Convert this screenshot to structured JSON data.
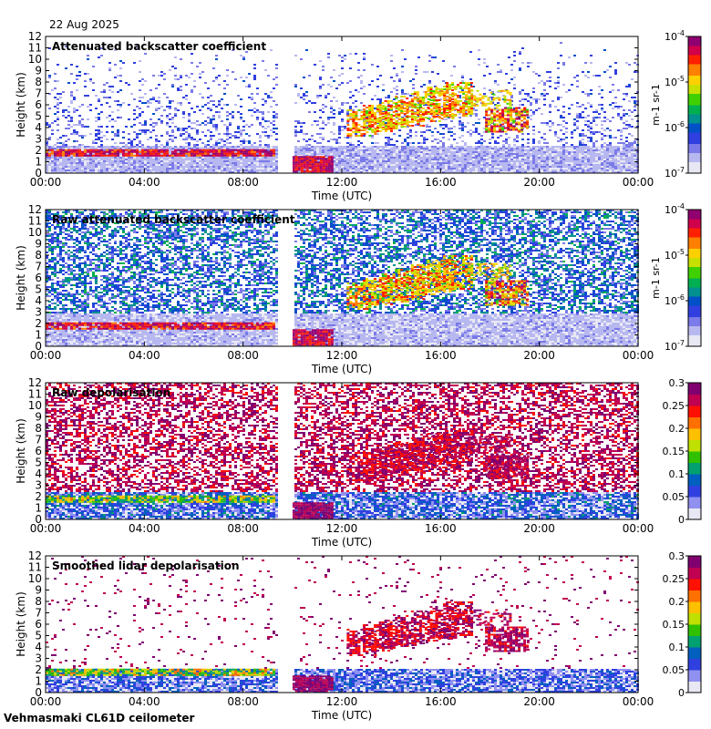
{
  "header": {
    "date": "22 Aug 2025"
  },
  "footer": {
    "instrument": "Vehmasmaki CL61D ceilometer"
  },
  "chart_data": [
    {
      "type": "heatmap",
      "title": "Attenuated backscatter coefficient",
      "xlabel": "Time (UTC)",
      "ylabel": "Height (km)",
      "xticks": [
        "00:00",
        "04:00",
        "08:00",
        "12:00",
        "16:00",
        "20:00",
        "00:00"
      ],
      "yticks": [
        0,
        1,
        2,
        3,
        4,
        5,
        6,
        7,
        8,
        9,
        10,
        11,
        12
      ],
      "xlim_hours": [
        0,
        24
      ],
      "ylim_km": [
        0,
        12
      ],
      "colorbar": {
        "scale": "log",
        "ticks": [
          "10-7",
          "10-6",
          "10-5",
          "10-4"
        ],
        "min": 1e-07,
        "max": 0.0001,
        "unit": "m-1 sr-1"
      },
      "data_gap_hours": [
        9.45,
        10.0
      ]
    },
    {
      "type": "heatmap",
      "title": "Raw attenuated backscatter coefficient",
      "xlabel": "Time (UTC)",
      "ylabel": "Height (km)",
      "xticks": [
        "00:00",
        "04:00",
        "08:00",
        "12:00",
        "16:00",
        "20:00",
        "00:00"
      ],
      "yticks": [
        0,
        1,
        2,
        3,
        4,
        5,
        6,
        7,
        8,
        9,
        10,
        11,
        12
      ],
      "xlim_hours": [
        0,
        24
      ],
      "ylim_km": [
        0,
        12
      ],
      "colorbar": {
        "scale": "log",
        "ticks": [
          "10-7",
          "10-6",
          "10-5",
          "10-4"
        ],
        "min": 1e-07,
        "max": 0.0001,
        "unit": "m-1 sr-1"
      },
      "data_gap_hours": [
        9.45,
        10.0
      ]
    },
    {
      "type": "heatmap",
      "title": "Raw depolarisation",
      "xlabel": "Time (UTC)",
      "ylabel": "Height (km)",
      "xticks": [
        "00:00",
        "04:00",
        "08:00",
        "12:00",
        "16:00",
        "20:00",
        "00:00"
      ],
      "yticks": [
        0,
        1,
        2,
        3,
        4,
        5,
        6,
        7,
        8,
        9,
        10,
        11,
        12
      ],
      "xlim_hours": [
        0,
        24
      ],
      "ylim_km": [
        0,
        12
      ],
      "colorbar": {
        "scale": "linear",
        "ticks": [
          "0",
          "0.05",
          "0.1",
          "0.15",
          "0.2",
          "0.25",
          "0.3"
        ],
        "min": 0,
        "max": 0.3
      },
      "data_gap_hours": [
        9.45,
        10.0
      ]
    },
    {
      "type": "heatmap",
      "title": "Smoothed lidar depolarisation",
      "xlabel": "Time (UTC)",
      "ylabel": "Height (km)",
      "xticks": [
        "00:00",
        "04:00",
        "08:00",
        "12:00",
        "16:00",
        "20:00",
        "00:00"
      ],
      "yticks": [
        0,
        1,
        2,
        3,
        4,
        5,
        6,
        7,
        8,
        9,
        10,
        11,
        12
      ],
      "xlim_hours": [
        0,
        24
      ],
      "ylim_km": [
        0,
        12
      ],
      "colorbar": {
        "scale": "linear",
        "ticks": [
          "0",
          "0.05",
          "0.1",
          "0.15",
          "0.2",
          "0.25",
          "0.3"
        ],
        "min": 0,
        "max": 0.3
      },
      "data_gap_hours": [
        9.45,
        10.0
      ]
    }
  ]
}
